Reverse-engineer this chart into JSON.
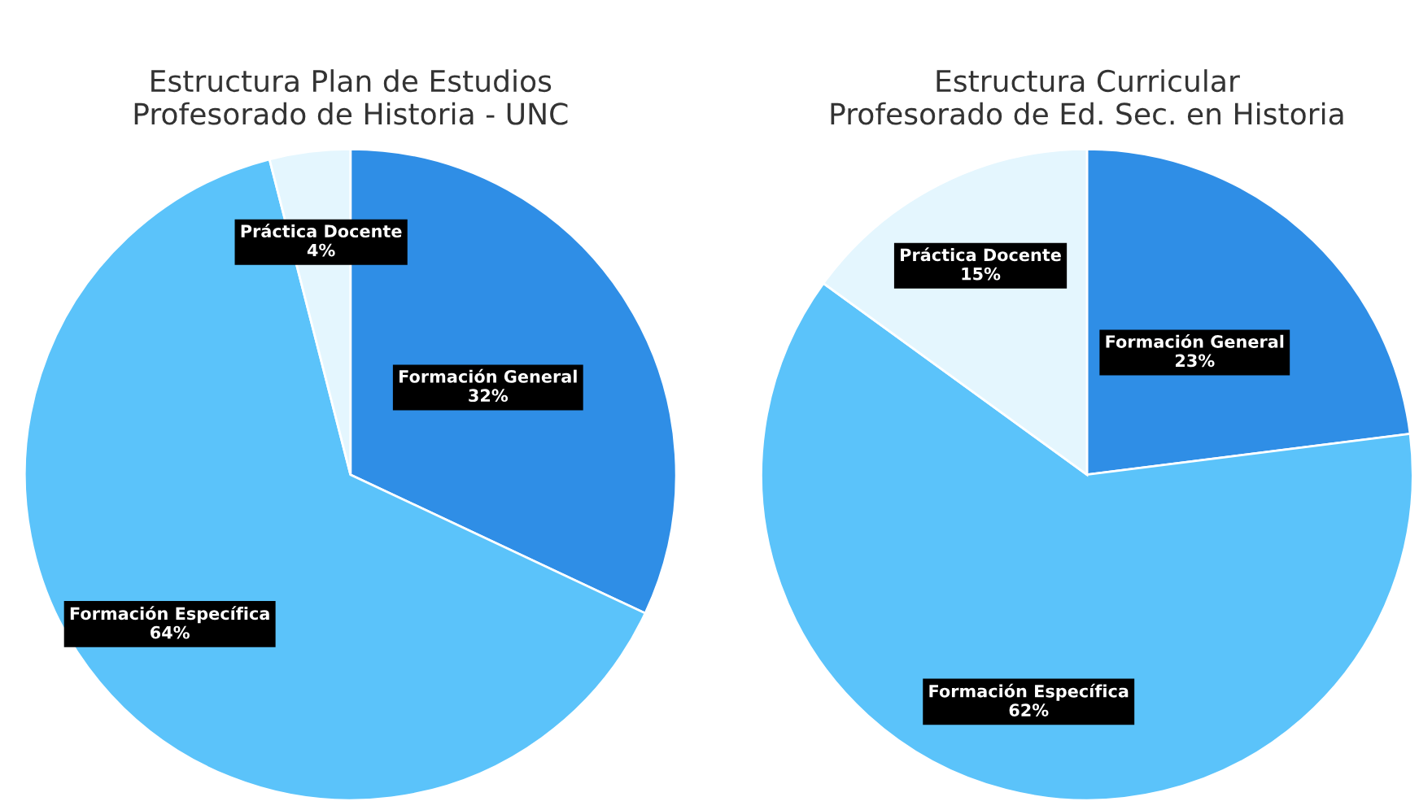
{
  "chart_data": [
    {
      "type": "pie",
      "title": "Estructura Plan de Estudios\nProfesorado de Historia - UNC",
      "categories": [
        "Formación General",
        "Formación Específica",
        "Práctica Docente"
      ],
      "values": [
        32,
        64,
        4
      ],
      "value_labels": [
        "32%",
        "64%",
        "4%"
      ],
      "colors": [
        "#2f8ee6",
        "#5bc3fa",
        "#e4f6fe"
      ],
      "legend": false
    },
    {
      "type": "pie",
      "title": "Estructura Curricular\nProfesorado de Ed. Sec. en Historia",
      "categories": [
        "Formación General",
        "Formación Específica",
        "Práctica Docente"
      ],
      "values": [
        23,
        62,
        15
      ],
      "value_labels": [
        "23%",
        "62%",
        "15%"
      ],
      "colors": [
        "#2f8ee6",
        "#5bc3fa",
        "#e4f6fe"
      ],
      "legend": false
    }
  ]
}
